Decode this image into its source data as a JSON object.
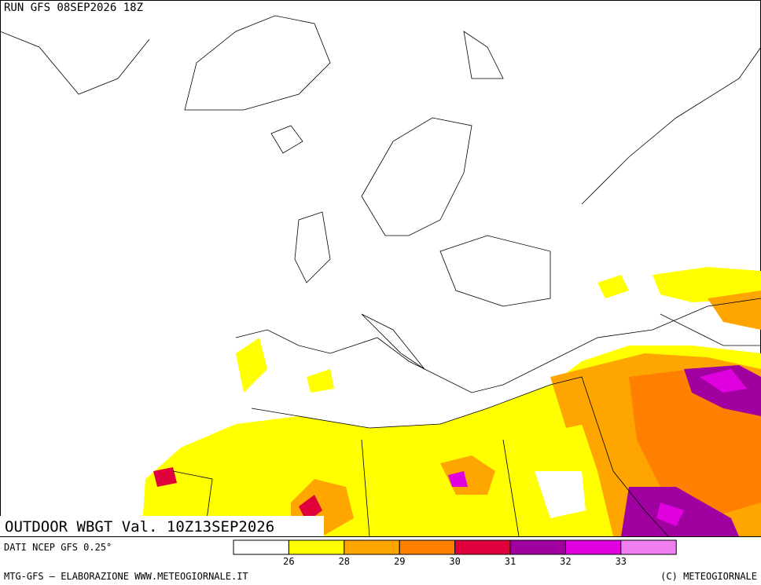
{
  "header": {
    "run": "RUN GFS 08SEP2026 18Z"
  },
  "map": {
    "label": "OUTDOOR WBGT Val. 10Z13SEP2026"
  },
  "legend": {
    "colors": [
      "#ffffff",
      "#ffff00",
      "#ffa500",
      "#ff7f00",
      "#e0003c",
      "#a000a0",
      "#e000e0",
      "#f07ff0"
    ],
    "ticks": [
      26,
      28,
      29,
      30,
      31,
      32,
      33
    ]
  },
  "footer": {
    "source": "DATI NCEP GFS 0.25°",
    "credit": "MTG-GFS – ELABORAZIONE WWW.METEOGIORNALE.IT",
    "copyright": "(C) METEOGIORNALE"
  }
}
